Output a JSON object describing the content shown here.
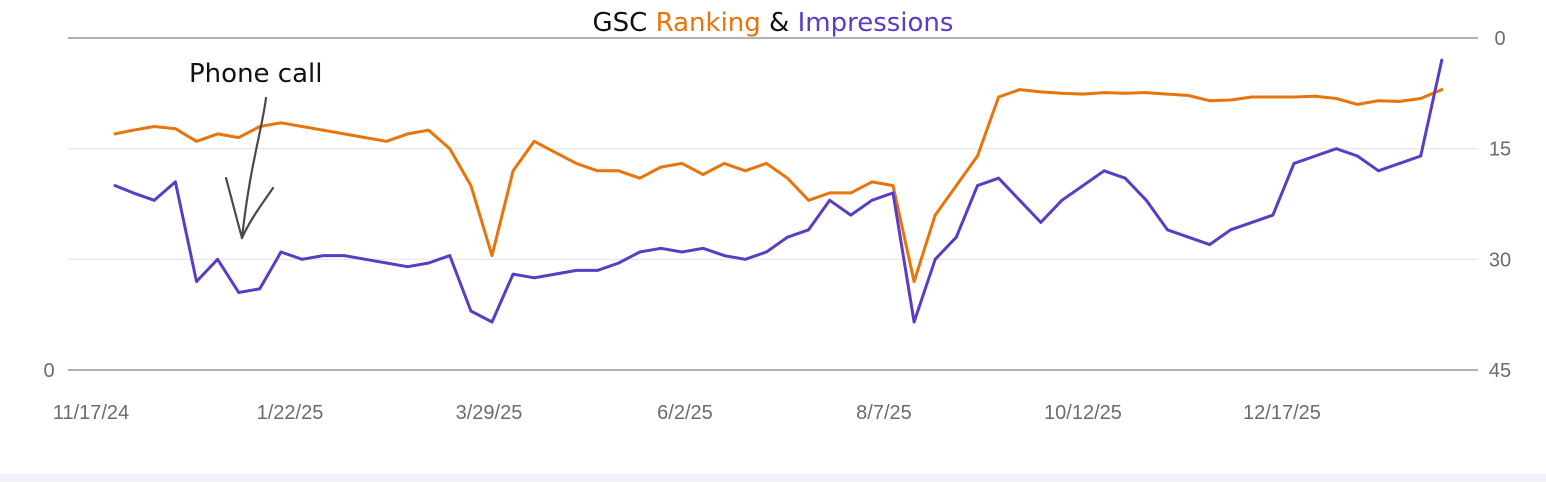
{
  "colors": {
    "ranking": "#e8740c",
    "impressions": "#5b3cc4",
    "title_plain": "#111111",
    "grid": "#e6e6e6",
    "axis": "#9a9a9a",
    "annotation": "#4a4a4a"
  },
  "chart_data": {
    "type": "line",
    "title_parts": {
      "prefix": "GSC",
      "ranking": "Ranking",
      "joiner": "&",
      "impressions": "Impressions"
    },
    "x_tick_labels": [
      "11/17/24",
      "1/22/25",
      "3/29/25",
      "6/2/25",
      "8/7/25",
      "10/12/25",
      "12/17/25"
    ],
    "left_axis_ticks": [
      "0"
    ],
    "right_axis": {
      "reversed": true,
      "ylim": [
        0,
        45
      ],
      "ticks": [
        "0",
        "15",
        "30",
        "45"
      ]
    },
    "grid": true,
    "annotation": {
      "text": "Phone call",
      "x": "12/28/24"
    },
    "series": [
      {
        "name": "Ranking",
        "axis": "right",
        "x": [
          "11/25/24",
          "12/1/24",
          "12/8/24",
          "12/15/24",
          "12/22/24",
          "12/29/24",
          "1/5/25",
          "1/12/25",
          "1/19/25",
          "1/26/25",
          "2/2/25",
          "2/9/25",
          "2/16/25",
          "2/23/25",
          "3/2/25",
          "3/9/25",
          "3/16/25",
          "3/23/25",
          "3/30/25",
          "4/6/25",
          "4/13/25",
          "4/20/25",
          "4/27/25",
          "5/4/25",
          "5/11/25",
          "5/18/25",
          "5/25/25",
          "6/1/25",
          "6/8/25",
          "6/15/25",
          "6/22/25",
          "6/29/25",
          "7/6/25",
          "7/13/25",
          "7/20/25",
          "7/27/25",
          "8/3/25",
          "8/10/25",
          "8/17/25",
          "8/24/25",
          "8/31/25",
          "9/7/25",
          "9/14/25",
          "9/21/25",
          "9/28/25",
          "10/5/25",
          "10/12/25",
          "10/19/25",
          "10/26/25",
          "11/2/25",
          "11/9/25",
          "11/16/25",
          "11/23/25",
          "11/30/25",
          "12/7/25",
          "12/14/25",
          "12/21/25",
          "12/28/25",
          "1/4/26",
          "1/11/26",
          "1/18/26",
          "1/25/26",
          "2/1/26",
          "2/8/26"
        ],
        "values": [
          13,
          12.5,
          12,
          12.3,
          14,
          13,
          13.5,
          12,
          11.5,
          12,
          12.5,
          13,
          13.5,
          14,
          13,
          12.5,
          15,
          20,
          29.5,
          18,
          14,
          15.5,
          17,
          18,
          18,
          19,
          17.5,
          17,
          18.5,
          17,
          18,
          17,
          19,
          22,
          21,
          21,
          19.5,
          20,
          33,
          24,
          20,
          16,
          8,
          7,
          7.3,
          7.5,
          7.6,
          7.4,
          7.5,
          7.4,
          7.6,
          7.8,
          8.5,
          8.4,
          8,
          8,
          8,
          7.9,
          8.2,
          9,
          8.5,
          8.6,
          8.2,
          7
        ]
      },
      {
        "name": "Impressions",
        "axis": "right",
        "x": [
          "11/25/24",
          "12/1/24",
          "12/8/24",
          "12/15/24",
          "12/22/24",
          "12/29/24",
          "1/5/25",
          "1/12/25",
          "1/19/25",
          "1/26/25",
          "2/2/25",
          "2/9/25",
          "2/16/25",
          "2/23/25",
          "3/2/25",
          "3/9/25",
          "3/16/25",
          "3/23/25",
          "3/30/25",
          "4/6/25",
          "4/13/25",
          "4/20/25",
          "4/27/25",
          "5/4/25",
          "5/11/25",
          "5/18/25",
          "5/25/25",
          "6/1/25",
          "6/8/25",
          "6/15/25",
          "6/22/25",
          "6/29/25",
          "7/6/25",
          "7/13/25",
          "7/20/25",
          "7/27/25",
          "8/3/25",
          "8/10/25",
          "8/17/25",
          "8/24/25",
          "8/31/25",
          "9/7/25",
          "9/14/25",
          "9/21/25",
          "9/28/25",
          "10/5/25",
          "10/12/25",
          "10/19/25",
          "10/26/25",
          "11/2/25",
          "11/9/25",
          "11/16/25",
          "11/23/25",
          "11/30/25",
          "12/7/25",
          "12/14/25",
          "12/21/25",
          "12/28/25",
          "1/4/26",
          "1/11/26",
          "1/18/26",
          "1/25/26",
          "2/1/26",
          "2/8/26"
        ],
        "values": [
          20,
          21,
          22,
          19.5,
          33,
          30,
          34.5,
          34,
          29,
          30,
          29.5,
          29.5,
          30,
          30.5,
          31,
          30.5,
          29.5,
          37,
          38.5,
          32,
          32.5,
          32,
          31.5,
          31.5,
          30.5,
          29,
          28.5,
          29,
          28.5,
          29.5,
          30,
          29,
          27,
          26,
          22,
          24,
          22,
          21,
          38.5,
          30,
          27,
          20,
          19,
          22,
          25,
          22,
          20,
          18,
          19,
          22,
          26,
          27,
          28,
          26,
          25,
          24,
          17,
          16,
          15,
          16,
          18,
          17,
          16,
          3
        ]
      }
    ]
  }
}
